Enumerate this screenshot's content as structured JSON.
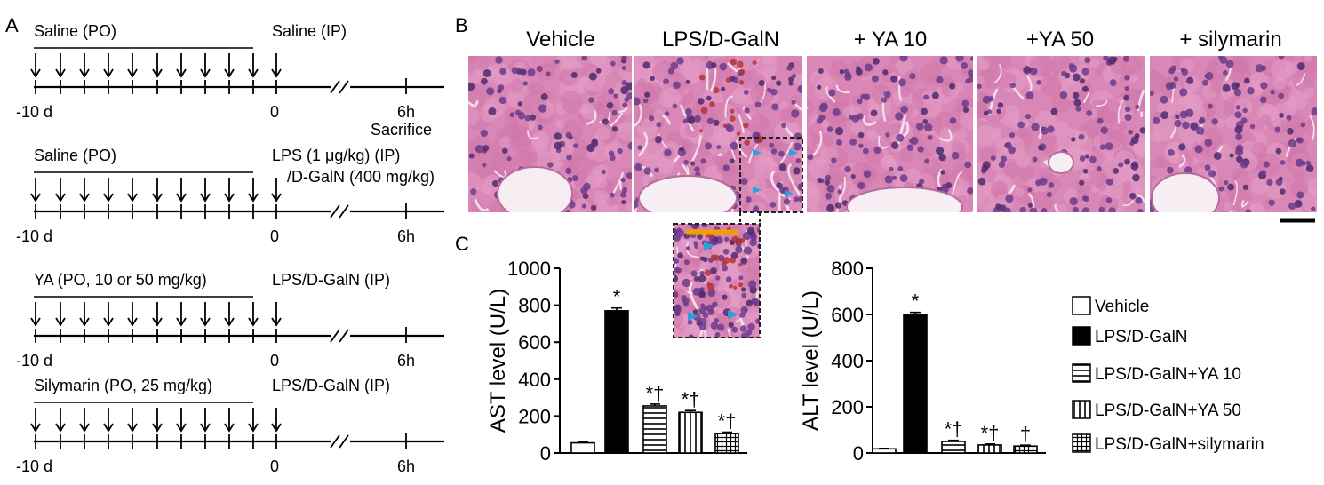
{
  "panelA": {
    "letter": "A",
    "rows": [
      {
        "top_label": "Saline (PO)",
        "right_label": "Saline (IP)",
        "right_label2": "",
        "end_label": "6h",
        "end_sub": "Sacrifice",
        "start_label": "-10 d",
        "zero_label": "0"
      },
      {
        "top_label": "Saline (PO)",
        "right_label": "LPS (1 μg/kg) (IP)",
        "right_label2": "/D-GalN (400 mg/kg)",
        "end_label": "6h",
        "end_sub": "",
        "start_label": "-10 d",
        "zero_label": "0"
      },
      {
        "top_label": "YA (PO, 10 or 50 mg/kg)",
        "right_label": "LPS/D-GalN (IP)",
        "right_label2": "",
        "end_label": "6h",
        "end_sub": "",
        "start_label": "-10 d",
        "zero_label": "0"
      },
      {
        "top_label": "Silymarin (PO, 25 mg/kg)",
        "right_label": "LPS/D-GalN (IP)",
        "right_label2": "",
        "end_label": "6h",
        "end_sub": "",
        "start_label": "-10 d",
        "zero_label": "0"
      }
    ]
  },
  "panelB": {
    "letter": "B",
    "titles": [
      "Vehicle",
      "LPS/D-GalN",
      "+ YA 10",
      "+YA 50",
      "+ silymarin"
    ]
  },
  "panelC": {
    "letter": "C",
    "legend": [
      "Vehicle",
      "LPS/D-GalN",
      "LPS/D-GalN+YA 10",
      "LPS/D-GalN+YA 50",
      "LPS/D-GalN+silymarin"
    ]
  },
  "chart_data": [
    {
      "type": "bar",
      "categories": [
        "Vehicle",
        "LPS/D-GalN",
        "LPS/D-GalN+YA 10",
        "LPS/D-GalN+YA 50",
        "LPS/D-GalN+silymarin"
      ],
      "values": [
        55,
        770,
        255,
        220,
        105
      ],
      "errors": [
        5,
        15,
        10,
        10,
        8
      ],
      "annotations": [
        "",
        "*",
        "*†",
        "*†",
        "*†"
      ],
      "ylabel": "AST level (U/L)",
      "ylim": [
        0,
        1000
      ],
      "yticks": [
        "0",
        "200",
        "400",
        "600",
        "800",
        "1000"
      ],
      "patterns": [
        "white",
        "black",
        "horizontal",
        "vertical",
        "grid"
      ]
    },
    {
      "type": "bar",
      "categories": [
        "Vehicle",
        "LPS/D-GalN",
        "LPS/D-GalN+YA 10",
        "LPS/D-GalN+YA 50",
        "LPS/D-GalN+silymarin"
      ],
      "values": [
        18,
        597,
        50,
        35,
        30
      ],
      "errors": [
        2,
        12,
        5,
        4,
        4
      ],
      "annotations": [
        "",
        "*",
        "*†",
        "*†",
        "†"
      ],
      "ylabel": "ALT level (U/L)",
      "ylim": [
        0,
        800
      ],
      "yticks": [
        "0",
        "200",
        "400",
        "600",
        "800"
      ],
      "patterns": [
        "white",
        "black",
        "horizontal",
        "vertical",
        "grid"
      ]
    }
  ]
}
